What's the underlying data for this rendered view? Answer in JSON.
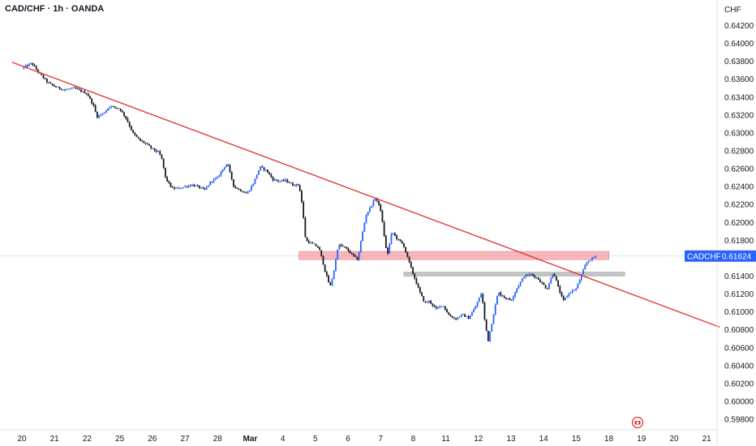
{
  "header": {
    "title": "CAD/CHF · 1h · OANDA"
  },
  "axis": {
    "currency_label": "CHF"
  },
  "colors": {
    "up": "#2962ff",
    "down": "#131722",
    "trendline": "#e53935",
    "resistance_zone": "#f28b93",
    "support_zone": "#b8b8b8",
    "price_badge": "#2962ff"
  },
  "price_badge": {
    "symbol": "CADCHF",
    "value": "0.61624"
  },
  "chart_data": {
    "type": "candlestick",
    "title": "CAD/CHF · 1h · OANDA",
    "ylabel": "CHF",
    "ylim": [
      0.5972,
      0.6436
    ],
    "y_ticks": [
      "0.64200",
      "0.64000",
      "0.63800",
      "0.63600",
      "0.63400",
      "0.63200",
      "0.63000",
      "0.62800",
      "0.62600",
      "0.62400",
      "0.62200",
      "0.62000",
      "0.61800",
      "0.61600",
      "0.61400",
      "0.61200",
      "0.61000",
      "0.60800",
      "0.60600",
      "0.60400",
      "0.60200",
      "0.60000",
      "0.59800"
    ],
    "x_ticks": [
      "20",
      "21",
      "22",
      "25",
      "26",
      "27",
      "28",
      "Mar",
      "4",
      "5",
      "6",
      "7",
      "8",
      "11",
      "12",
      "13",
      "14",
      "15",
      "18",
      "19",
      "20",
      "21"
    ],
    "last_price": 0.61624,
    "close_path": [
      [
        0,
        0.6372
      ],
      [
        0.3,
        0.6378
      ],
      [
        0.5,
        0.6368
      ],
      [
        0.8,
        0.6356
      ],
      [
        1,
        0.6352
      ],
      [
        1.3,
        0.6348
      ],
      [
        1.6,
        0.635
      ],
      [
        2,
        0.6344
      ],
      [
        2.2,
        0.633
      ],
      [
        2.3,
        0.6318
      ],
      [
        2.5,
        0.6322
      ],
      [
        2.7,
        0.633
      ],
      [
        3,
        0.6327
      ],
      [
        3.2,
        0.6316
      ],
      [
        3.4,
        0.63
      ],
      [
        3.6,
        0.6292
      ],
      [
        3.8,
        0.6288
      ],
      [
        4,
        0.6282
      ],
      [
        4.2,
        0.6278
      ],
      [
        4.3,
        0.627
      ],
      [
        4.4,
        0.625
      ],
      [
        4.6,
        0.6238
      ],
      [
        4.8,
        0.6238
      ],
      [
        5,
        0.624
      ],
      [
        5.2,
        0.6242
      ],
      [
        5.4,
        0.624
      ],
      [
        5.6,
        0.6236
      ],
      [
        5.8,
        0.6246
      ],
      [
        6,
        0.625
      ],
      [
        6.2,
        0.6262
      ],
      [
        6.3,
        0.6266
      ],
      [
        6.5,
        0.624
      ],
      [
        6.7,
        0.6236
      ],
      [
        6.9,
        0.6232
      ],
      [
        7.1,
        0.6244
      ],
      [
        7.3,
        0.6262
      ],
      [
        7.5,
        0.6258
      ],
      [
        7.7,
        0.6248
      ],
      [
        7.9,
        0.6246
      ],
      [
        8.1,
        0.6247
      ],
      [
        8.3,
        0.6242
      ],
      [
        8.5,
        0.6242
      ],
      [
        8.6,
        0.6218
      ],
      [
        8.7,
        0.618
      ],
      [
        8.9,
        0.6176
      ],
      [
        9.1,
        0.6172
      ],
      [
        9.2,
        0.616
      ],
      [
        9.3,
        0.6145
      ],
      [
        9.45,
        0.6128
      ],
      [
        9.55,
        0.6142
      ],
      [
        9.7,
        0.6175
      ],
      [
        9.9,
        0.6172
      ],
      [
        10.1,
        0.6165
      ],
      [
        10.3,
        0.6158
      ],
      [
        10.4,
        0.618
      ],
      [
        10.55,
        0.6208
      ],
      [
        10.7,
        0.6218
      ],
      [
        10.85,
        0.6228
      ],
      [
        11,
        0.6214
      ],
      [
        11.1,
        0.6188
      ],
      [
        11.2,
        0.6162
      ],
      [
        11.35,
        0.619
      ],
      [
        11.5,
        0.6182
      ],
      [
        11.7,
        0.6175
      ],
      [
        11.85,
        0.6158
      ],
      [
        12,
        0.6142
      ],
      [
        12.2,
        0.6122
      ],
      [
        12.35,
        0.611
      ],
      [
        12.5,
        0.6112
      ],
      [
        12.7,
        0.6103
      ],
      [
        12.9,
        0.6108
      ],
      [
        13.1,
        0.6096
      ],
      [
        13.3,
        0.6092
      ],
      [
        13.5,
        0.6097
      ],
      [
        13.7,
        0.6093
      ],
      [
        13.9,
        0.6105
      ],
      [
        14.1,
        0.6122
      ],
      [
        14.2,
        0.6088
      ],
      [
        14.3,
        0.6068
      ],
      [
        14.45,
        0.6095
      ],
      [
        14.6,
        0.6122
      ],
      [
        14.8,
        0.6116
      ],
      [
        15,
        0.6113
      ],
      [
        15.2,
        0.6128
      ],
      [
        15.4,
        0.614
      ],
      [
        15.6,
        0.6142
      ],
      [
        15.8,
        0.6138
      ],
      [
        16,
        0.613
      ],
      [
        16.1,
        0.6125
      ],
      [
        16.3,
        0.6145
      ],
      [
        16.45,
        0.6127
      ],
      [
        16.6,
        0.6112
      ],
      [
        16.8,
        0.6122
      ],
      [
        17,
        0.6126
      ],
      [
        17.2,
        0.6145
      ],
      [
        17.3,
        0.6154
      ],
      [
        17.4,
        0.6158
      ],
      [
        17.6,
        0.6162
      ]
    ],
    "trendline": {
      "start": [
        -0.3,
        0.6379
      ],
      "end": [
        21.4,
        0.6083
      ]
    },
    "resistance_zone": {
      "x": [
        8.5,
        18.0
      ],
      "y": [
        0.61585,
        0.61675
      ]
    },
    "support_zone": {
      "x": [
        11.7,
        18.5
      ],
      "y": [
        0.61395,
        0.6145
      ]
    },
    "grid": false,
    "legend": "none"
  }
}
